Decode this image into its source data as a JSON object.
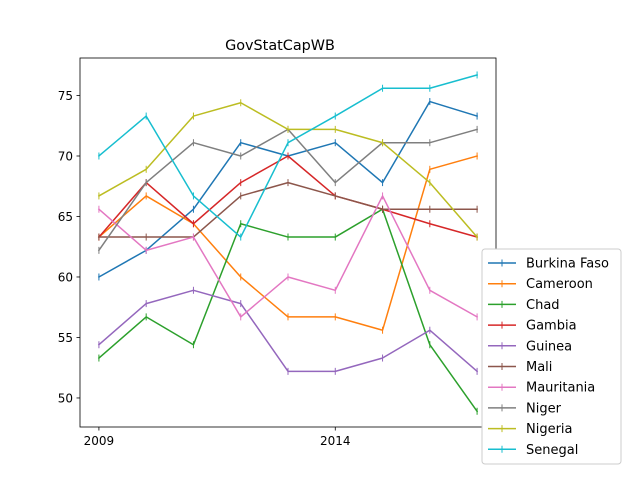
{
  "chart_data": {
    "type": "line",
    "title": "GovStatCapWB",
    "xlabel": "",
    "ylabel": "",
    "x": [
      2009,
      2010,
      2011,
      2012,
      2013,
      2014,
      2015,
      2016,
      2017
    ],
    "x_ticks": [
      {
        "value": 2009,
        "label": "2009"
      },
      {
        "value": 2014,
        "label": "2014"
      }
    ],
    "y_ticks": [
      {
        "value": 50,
        "label": "50"
      },
      {
        "value": 55,
        "label": "55"
      },
      {
        "value": 60,
        "label": "60"
      },
      {
        "value": 65,
        "label": "65"
      },
      {
        "value": 70,
        "label": "70"
      },
      {
        "value": 75,
        "label": "75"
      }
    ],
    "xlim": [
      2008.6,
      2017.4
    ],
    "ylim": [
      47.6,
      78.1
    ],
    "grid": false,
    "legend_position": "outside-right-bottom",
    "series": [
      {
        "name": "Burkina Faso",
        "color": "#1f77b4",
        "values": [
          60.0,
          62.2,
          65.6,
          71.1,
          70.0,
          71.1,
          67.8,
          74.5,
          73.3
        ]
      },
      {
        "name": "Cameroon",
        "color": "#ff7f0e",
        "values": [
          63.3,
          66.7,
          64.4,
          60.0,
          56.7,
          56.7,
          55.6,
          68.9,
          70.0
        ]
      },
      {
        "name": "Chad",
        "color": "#2ca02c",
        "values": [
          53.3,
          56.7,
          54.4,
          64.4,
          63.3,
          63.3,
          65.6,
          54.4,
          48.9
        ]
      },
      {
        "name": "Gambia",
        "color": "#d62728",
        "values": [
          63.3,
          67.8,
          64.4,
          67.8,
          70.0,
          66.7,
          65.6,
          64.4,
          63.3
        ]
      },
      {
        "name": "Guinea",
        "color": "#9467bd",
        "values": [
          54.4,
          57.8,
          58.9,
          57.8,
          52.2,
          52.2,
          53.3,
          55.6,
          52.2
        ]
      },
      {
        "name": "Mali",
        "color": "#8c564b",
        "values": [
          63.3,
          63.3,
          63.3,
          66.7,
          67.8,
          66.7,
          65.6,
          65.6,
          65.6
        ]
      },
      {
        "name": "Mauritania",
        "color": "#e377c2",
        "values": [
          65.6,
          62.2,
          63.3,
          56.7,
          60.0,
          58.9,
          66.7,
          58.9,
          56.7
        ]
      },
      {
        "name": "Niger",
        "color": "#7f7f7f",
        "values": [
          62.2,
          67.8,
          71.1,
          70.0,
          72.2,
          67.8,
          71.1,
          71.1,
          72.2
        ]
      },
      {
        "name": "Nigeria",
        "color": "#bcbd22",
        "values": [
          66.7,
          68.9,
          73.3,
          74.4,
          72.2,
          72.2,
          71.1,
          67.8,
          63.3
        ]
      },
      {
        "name": "Senegal",
        "color": "#17becf",
        "values": [
          70.0,
          73.3,
          66.7,
          63.3,
          71.1,
          73.3,
          75.6,
          75.6,
          76.7
        ]
      }
    ]
  }
}
